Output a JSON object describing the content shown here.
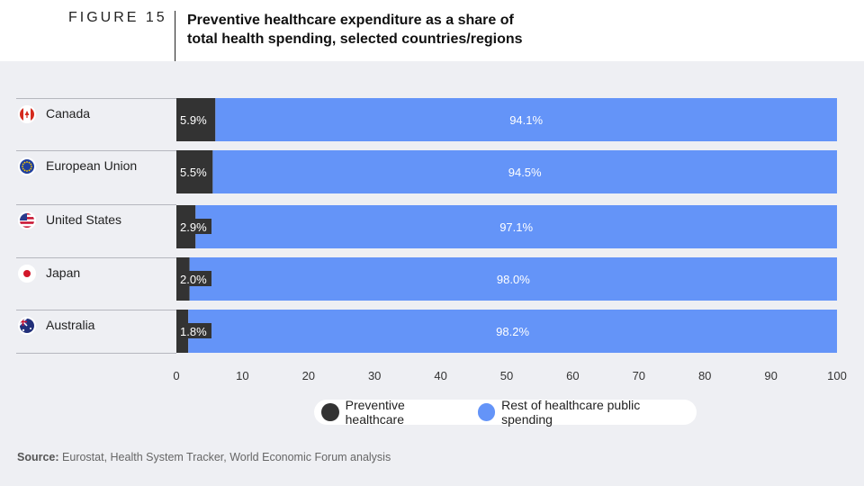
{
  "header": {
    "figure_label": "FIGURE 15",
    "title_line1": "Preventive healthcare expenditure as a share of",
    "title_line2": "total health spending, selected countries/regions"
  },
  "chart_data": {
    "type": "bar",
    "orientation": "horizontal",
    "stacked": true,
    "categories": [
      "Canada",
      "European Union",
      "United States",
      "Japan",
      "Australia"
    ],
    "series": [
      {
        "name": "Preventive healthcare",
        "color": "#333333",
        "values": [
          5.9,
          5.5,
          2.9,
          2.0,
          1.8
        ],
        "labels": [
          "5.9%",
          "5.5%",
          "2.9%",
          "2.0%",
          "1.8%"
        ]
      },
      {
        "name": "Rest of healthcare public spending",
        "color": "#6494f8",
        "values": [
          94.1,
          94.5,
          97.1,
          98.0,
          98.2
        ],
        "labels": [
          "94.1%",
          "94.5%",
          "97.1%",
          "98.0%",
          "98.2%"
        ]
      }
    ],
    "flags": [
      "canada-flag-icon",
      "eu-flag-icon",
      "us-flag-icon",
      "japan-flag-icon",
      "australia-flag-icon"
    ],
    "xlim": [
      0,
      100
    ],
    "xticks": [
      "0",
      "10",
      "20",
      "30",
      "40",
      "50",
      "60",
      "70",
      "80",
      "90",
      "100"
    ],
    "legend_position": "bottom-center"
  },
  "source": {
    "label": "Source:",
    "text": "Eurostat, Health System Tracker, World Economic Forum analysis"
  }
}
